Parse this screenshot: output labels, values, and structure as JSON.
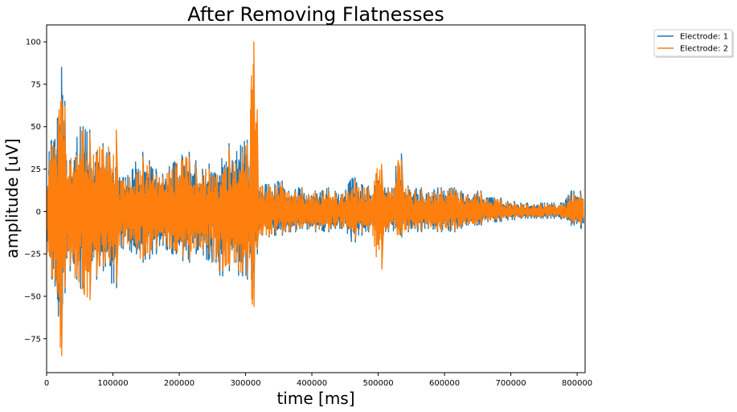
{
  "chart_data": {
    "type": "line",
    "title": "After Removing Flatnesses",
    "xlabel": "time [ms]",
    "ylabel": "amplitude [uV]",
    "xlim": [
      0,
      812000
    ],
    "ylim": [
      -95,
      110
    ],
    "xticks": [
      0,
      100000,
      200000,
      300000,
      400000,
      500000,
      600000,
      700000,
      800000
    ],
    "yticks": [
      -75,
      -50,
      -25,
      0,
      25,
      50,
      75,
      100
    ],
    "grid": false,
    "legend_position": "outside-top-right",
    "series": [
      {
        "name": "Electrode: 1",
        "color": "#1f77b4",
        "x": [
          0,
          5000,
          10000,
          15000,
          20000,
          25000,
          30000,
          40000,
          50000,
          60000,
          70000,
          80000,
          90000,
          100000,
          110000,
          120000,
          130000,
          140000,
          150000,
          160000,
          170000,
          180000,
          190000,
          200000,
          210000,
          220000,
          230000,
          240000,
          250000,
          260000,
          270000,
          280000,
          290000,
          300000,
          305000,
          310000,
          315000,
          320000,
          330000,
          340000,
          350000,
          360000,
          370000,
          380000,
          390000,
          400000,
          410000,
          420000,
          430000,
          440000,
          450000,
          460000,
          470000,
          480000,
          490000,
          500000,
          510000,
          520000,
          530000,
          540000,
          550000,
          560000,
          570000,
          580000,
          590000,
          600000,
          610000,
          620000,
          630000,
          640000,
          650000,
          660000,
          670000,
          680000,
          690000,
          700000,
          710000,
          720000,
          730000,
          740000,
          750000,
          760000,
          770000,
          780000,
          790000,
          800000,
          810000
        ],
        "upper": [
          15,
          42,
          40,
          45,
          85,
          65,
          30,
          35,
          50,
          48,
          35,
          40,
          35,
          30,
          20,
          20,
          25,
          35,
          30,
          25,
          22,
          25,
          28,
          32,
          35,
          30,
          25,
          28,
          22,
          25,
          40,
          30,
          38,
          42,
          22,
          35,
          28,
          15,
          16,
          15,
          18,
          12,
          12,
          14,
          10,
          12,
          10,
          14,
          12,
          10,
          12,
          20,
          16,
          15,
          12,
          25,
          14,
          12,
          34,
          15,
          12,
          14,
          10,
          12,
          14,
          12,
          14,
          12,
          10,
          10,
          12,
          8,
          8,
          8,
          6,
          6,
          5,
          5,
          4,
          5,
          5,
          5,
          5,
          5,
          12,
          12,
          12
        ],
        "lower": [
          -15,
          -40,
          -44,
          -40,
          -80,
          -48,
          -35,
          -40,
          -45,
          -48,
          -40,
          -35,
          -32,
          -45,
          -22,
          -20,
          -25,
          -30,
          -28,
          -25,
          -20,
          -22,
          -25,
          -28,
          -30,
          -25,
          -22,
          -28,
          -30,
          -38,
          -35,
          -30,
          -38,
          -40,
          -22,
          -45,
          -25,
          -14,
          -15,
          -14,
          -14,
          -12,
          -12,
          -10,
          -10,
          -12,
          -10,
          -12,
          -10,
          -10,
          -10,
          -18,
          -14,
          -12,
          -10,
          -20,
          -12,
          -10,
          -15,
          -12,
          -10,
          -12,
          -10,
          -10,
          -12,
          -10,
          -12,
          -10,
          -8,
          -8,
          -8,
          -6,
          -6,
          -6,
          -5,
          -5,
          -4,
          -4,
          -4,
          -4,
          -4,
          -4,
          -4,
          -5,
          -8,
          -10,
          -10
        ]
      },
      {
        "name": "Electrode: 2",
        "color": "#ff7f0e",
        "x": [
          0,
          5000,
          10000,
          15000,
          20000,
          25000,
          30000,
          40000,
          50000,
          60000,
          70000,
          80000,
          90000,
          100000,
          110000,
          120000,
          130000,
          140000,
          150000,
          160000,
          170000,
          180000,
          190000,
          200000,
          210000,
          220000,
          230000,
          240000,
          250000,
          260000,
          270000,
          280000,
          290000,
          300000,
          305000,
          310000,
          315000,
          320000,
          330000,
          340000,
          350000,
          360000,
          370000,
          380000,
          390000,
          400000,
          410000,
          420000,
          430000,
          440000,
          450000,
          460000,
          470000,
          480000,
          490000,
          500000,
          510000,
          520000,
          530000,
          540000,
          550000,
          560000,
          570000,
          580000,
          590000,
          600000,
          610000,
          620000,
          630000,
          640000,
          650000,
          660000,
          670000,
          680000,
          690000,
          700000,
          710000,
          720000,
          730000,
          740000,
          750000,
          760000,
          770000,
          780000,
          790000,
          800000,
          810000
        ],
        "upper": [
          12,
          40,
          38,
          42,
          66,
          62,
          28,
          33,
          48,
          46,
          33,
          38,
          33,
          48,
          18,
          18,
          22,
          32,
          28,
          22,
          20,
          22,
          25,
          30,
          32,
          28,
          22,
          25,
          20,
          22,
          38,
          28,
          35,
          40,
          20,
          100,
          60,
          14,
          15,
          14,
          16,
          11,
          11,
          13,
          9,
          11,
          9,
          13,
          11,
          9,
          11,
          18,
          14,
          14,
          11,
          28,
          13,
          11,
          30,
          14,
          11,
          13,
          9,
          11,
          13,
          11,
          13,
          11,
          9,
          9,
          11,
          7,
          7,
          7,
          5,
          5,
          4,
          4,
          3,
          4,
          4,
          4,
          4,
          4,
          10,
          10,
          10
        ],
        "lower": [
          -12,
          -38,
          -40,
          -38,
          -85,
          -45,
          -32,
          -38,
          -42,
          -52,
          -38,
          -32,
          -30,
          -42,
          -20,
          -18,
          -22,
          -28,
          -25,
          -22,
          -18,
          -20,
          -22,
          -25,
          -28,
          -22,
          -20,
          -25,
          -28,
          -35,
          -32,
          -28,
          -35,
          -38,
          -20,
          -56,
          -22,
          -13,
          -14,
          -13,
          -13,
          -11,
          -11,
          -9,
          -9,
          -11,
          -9,
          -11,
          -9,
          -9,
          -9,
          -16,
          -12,
          -11,
          -9,
          -34,
          -11,
          -9,
          -14,
          -11,
          -9,
          -11,
          -9,
          -9,
          -11,
          -9,
          -11,
          -9,
          -7,
          -7,
          -7,
          -5,
          -5,
          -5,
          -4,
          -4,
          -3,
          -3,
          -3,
          -3,
          -3,
          -3,
          -3,
          -4,
          -6,
          -8,
          -8
        ]
      }
    ]
  }
}
